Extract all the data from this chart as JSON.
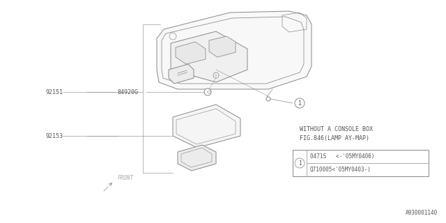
{
  "bg_color": "#ffffff",
  "line_color": "#888888",
  "text_color": "#555555",
  "title_line1": "WITHOUT A CONSOLE BOX",
  "title_line2": "FIG.846(LAMP AY-MAP)",
  "label_92151": "92151",
  "label_84920G": "84920G",
  "label_92153": "92153",
  "label_front": "FRONT",
  "part1_line1": "0471S   <-'05MY0406)",
  "part1_line2": "Q710005<'05MY0403-)",
  "footnote": "A930001140",
  "lw": 0.7
}
